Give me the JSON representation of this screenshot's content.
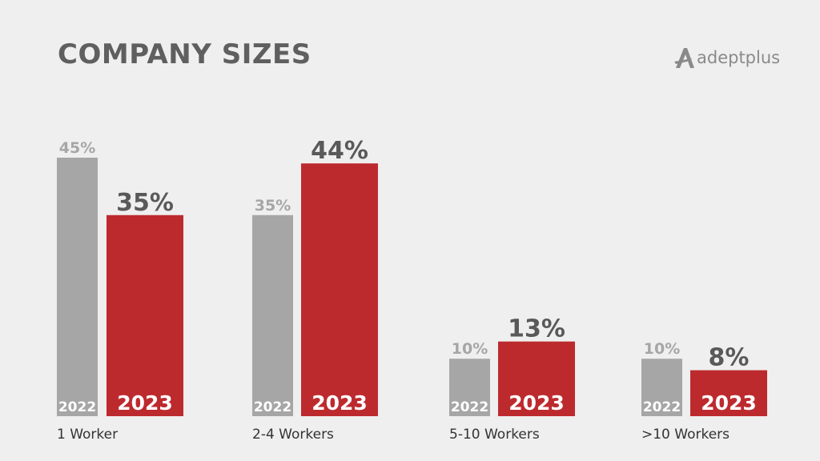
{
  "chart_data": {
    "type": "bar",
    "title": "COMPANY SIZES",
    "categories": [
      "1 Worker",
      "2-4 Workers",
      "5-10 Workers",
      ">10 Workers"
    ],
    "series": [
      {
        "name": "2022",
        "values": [
          45,
          35,
          10,
          10
        ],
        "labels": [
          "45%",
          "35%",
          "10%",
          "10%"
        ],
        "color": "#a6a6a6"
      },
      {
        "name": "2023",
        "values": [
          35,
          44,
          13,
          8
        ],
        "labels": [
          "35%",
          "44%",
          "13%",
          "8%"
        ],
        "color": "#bd2a2e"
      }
    ],
    "ylim": [
      0,
      50
    ],
    "grid": false,
    "unit": "%"
  },
  "logo": {
    "text": "adeptplus"
  },
  "colors": {
    "background": "#efefef",
    "title": "#5f5f5f",
    "value_label_2023": "#595959"
  }
}
